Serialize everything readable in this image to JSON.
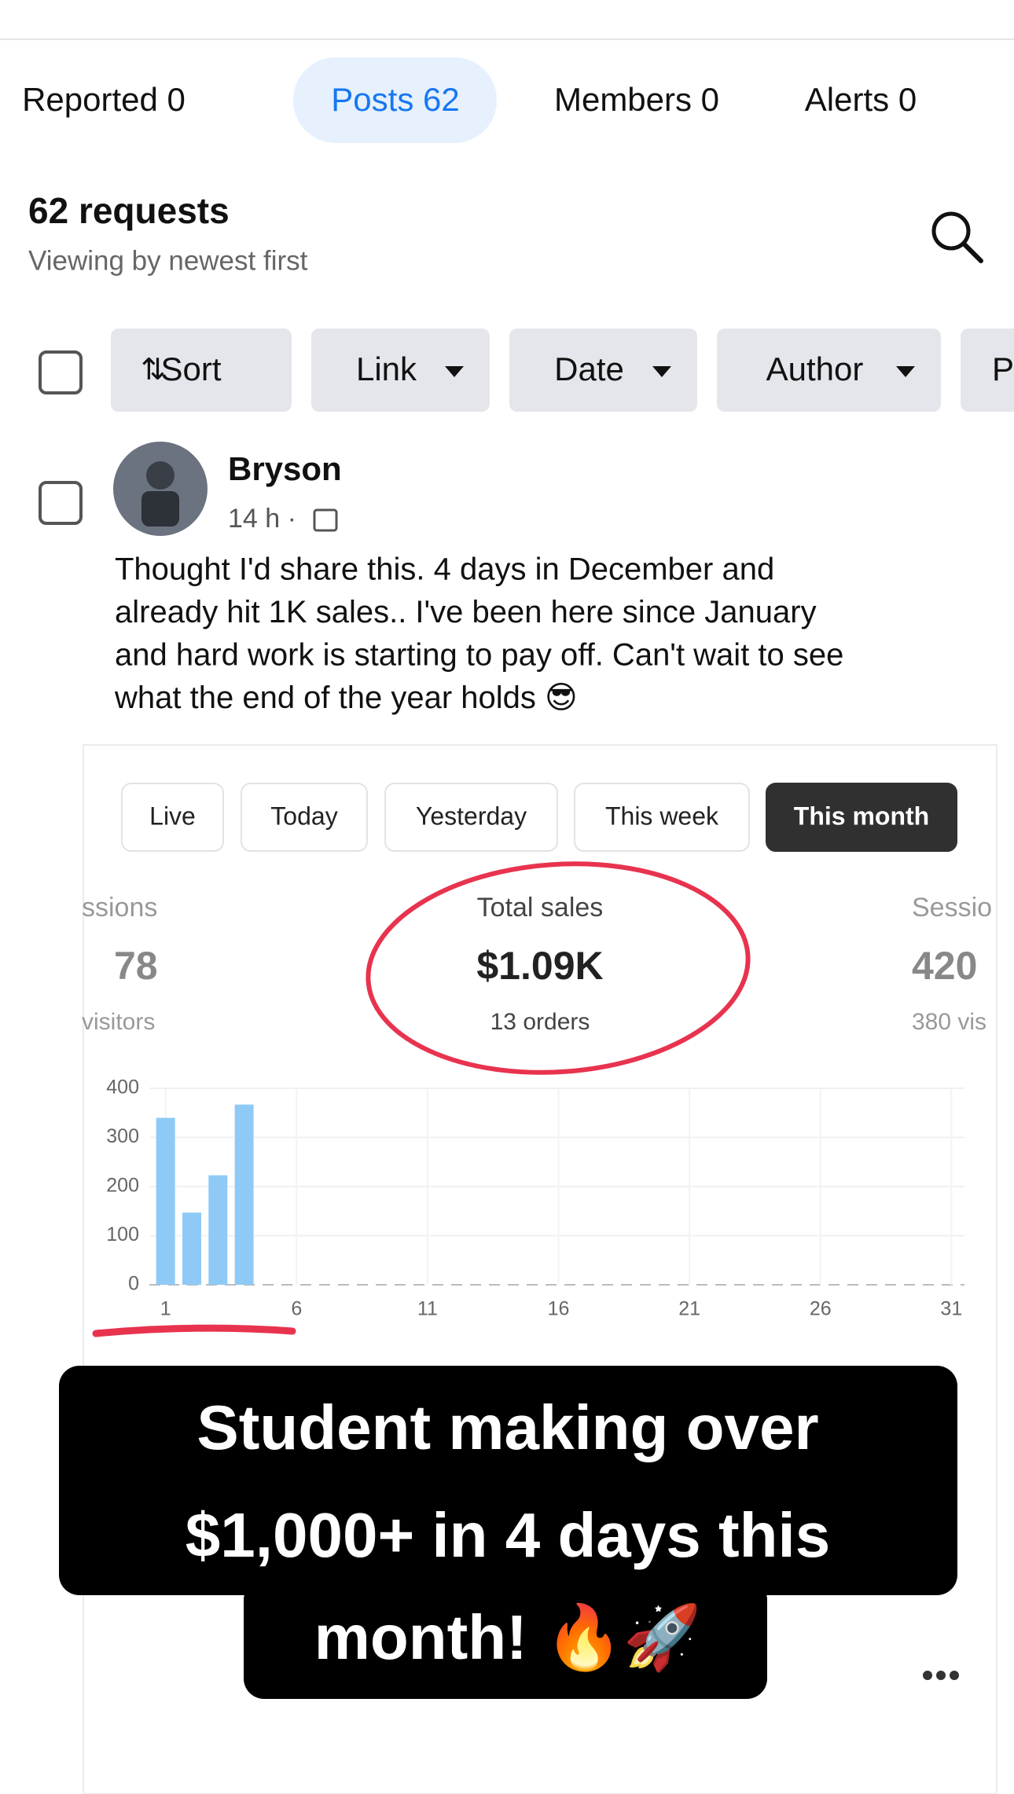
{
  "tabs": [
    "Reported 0",
    "Posts 62",
    "Members 0",
    "Alerts 0"
  ],
  "header": {
    "title": "62 requests",
    "subtitle": "Viewing by newest first"
  },
  "filters": [
    "Sort",
    "Link",
    "Date",
    "Author",
    "P"
  ],
  "post": {
    "author": "Bryson",
    "time": "14 h ·",
    "text": [
      "Thought I'd share this. 4 days in December and",
      "already hit 1K sales.. I've been here since January",
      "and hard work is starting to pay off. Can't wait to see",
      "what the end of the year holds 😎"
    ]
  },
  "dashboard": {
    "ranges": [
      "Live",
      "Today",
      "Yesterday",
      "This week",
      "This month"
    ],
    "left": [
      "ssions",
      "78",
      "visitors"
    ],
    "center": [
      "Total sales",
      "$1.09K",
      "13 orders"
    ],
    "right": [
      "Sessio",
      "420",
      "380 vis"
    ]
  },
  "chart_data": {
    "type": "bar",
    "x": [
      1,
      2,
      3,
      4
    ],
    "values": [
      340,
      147,
      223,
      367
    ],
    "color": "#8fcaf6",
    "xlim": [
      0.5,
      31.5
    ],
    "ylim": [
      0,
      400
    ],
    "xticks": [
      1,
      6,
      11,
      16,
      21,
      26,
      31
    ],
    "yticks": [
      0,
      100,
      200,
      300,
      400
    ],
    "grid": true
  },
  "caption": [
    "Student making over",
    "$1,000+ in 4 days this",
    "month! 🔥🚀"
  ]
}
